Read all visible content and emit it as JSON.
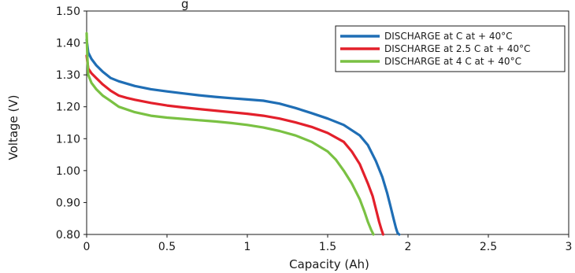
{
  "title_fragment": "g",
  "chart_data": {
    "type": "line",
    "xlabel": "Capacity (Ah)",
    "ylabel": "Voltage (V)",
    "xlim": [
      0,
      3
    ],
    "ylim": [
      0.8,
      1.5
    ],
    "x_ticks": [
      {
        "value": 0,
        "label": "0"
      },
      {
        "value": 0.5,
        "label": "0.5"
      },
      {
        "value": 1,
        "label": "1"
      },
      {
        "value": 1.5,
        "label": "1.5"
      },
      {
        "value": 2,
        "label": "2"
      },
      {
        "value": 2.5,
        "label": "2.5"
      },
      {
        "value": 3,
        "label": "3"
      }
    ],
    "y_ticks": [
      {
        "value": 0.8,
        "label": "0.80"
      },
      {
        "value": 0.9,
        "label": "0.90"
      },
      {
        "value": 1.0,
        "label": "1.00"
      },
      {
        "value": 1.1,
        "label": "1.10"
      },
      {
        "value": 1.2,
        "label": "1.20"
      },
      {
        "value": 1.3,
        "label": "1.30"
      },
      {
        "value": 1.4,
        "label": "1.40"
      },
      {
        "value": 1.5,
        "label": "1.50"
      }
    ],
    "grid": false,
    "legend_position": "top-right",
    "series": [
      {
        "name": "DISCHARGE at C at + 40°C",
        "color": "#1f6eb5",
        "x": [
          0.0,
          0.01,
          0.03,
          0.06,
          0.1,
          0.15,
          0.2,
          0.3,
          0.4,
          0.5,
          0.6,
          0.7,
          0.8,
          0.9,
          1.0,
          1.1,
          1.2,
          1.3,
          1.4,
          1.5,
          1.6,
          1.7,
          1.75,
          1.8,
          1.84,
          1.87,
          1.89,
          1.91,
          1.925,
          1.935,
          1.945
        ],
        "y": [
          1.41,
          1.37,
          1.35,
          1.33,
          1.31,
          1.29,
          1.28,
          1.265,
          1.255,
          1.248,
          1.242,
          1.236,
          1.231,
          1.227,
          1.223,
          1.219,
          1.21,
          1.196,
          1.18,
          1.163,
          1.143,
          1.11,
          1.08,
          1.03,
          0.98,
          0.93,
          0.89,
          0.85,
          0.82,
          0.805,
          0.8
        ]
      },
      {
        "name": "DISCHARGE at 2.5 C at + 40°C",
        "color": "#e3202b",
        "x": [
          0.0,
          0.01,
          0.03,
          0.06,
          0.1,
          0.15,
          0.2,
          0.25,
          0.3,
          0.4,
          0.5,
          0.6,
          0.7,
          0.8,
          0.9,
          1.0,
          1.1,
          1.2,
          1.3,
          1.4,
          1.5,
          1.6,
          1.65,
          1.7,
          1.75,
          1.78,
          1.8,
          1.82,
          1.835,
          1.845
        ],
        "y": [
          1.36,
          1.32,
          1.305,
          1.29,
          1.27,
          1.25,
          1.235,
          1.228,
          1.222,
          1.212,
          1.204,
          1.198,
          1.193,
          1.188,
          1.183,
          1.178,
          1.172,
          1.163,
          1.151,
          1.137,
          1.118,
          1.09,
          1.06,
          1.02,
          0.96,
          0.92,
          0.88,
          0.84,
          0.815,
          0.8
        ]
      },
      {
        "name": "DISCHARGE at 4 C at + 40°C",
        "color": "#7ac143",
        "x": [
          0.0,
          0.005,
          0.01,
          0.03,
          0.06,
          0.1,
          0.15,
          0.2,
          0.3,
          0.4,
          0.5,
          0.6,
          0.7,
          0.8,
          0.9,
          1.0,
          1.1,
          1.2,
          1.3,
          1.4,
          1.5,
          1.55,
          1.6,
          1.65,
          1.7,
          1.73,
          1.75,
          1.77,
          1.785
        ],
        "y": [
          1.43,
          1.35,
          1.3,
          1.275,
          1.255,
          1.235,
          1.218,
          1.2,
          1.183,
          1.172,
          1.166,
          1.162,
          1.158,
          1.154,
          1.149,
          1.143,
          1.135,
          1.124,
          1.11,
          1.09,
          1.06,
          1.035,
          1.0,
          0.96,
          0.91,
          0.87,
          0.84,
          0.815,
          0.8
        ]
      }
    ]
  }
}
